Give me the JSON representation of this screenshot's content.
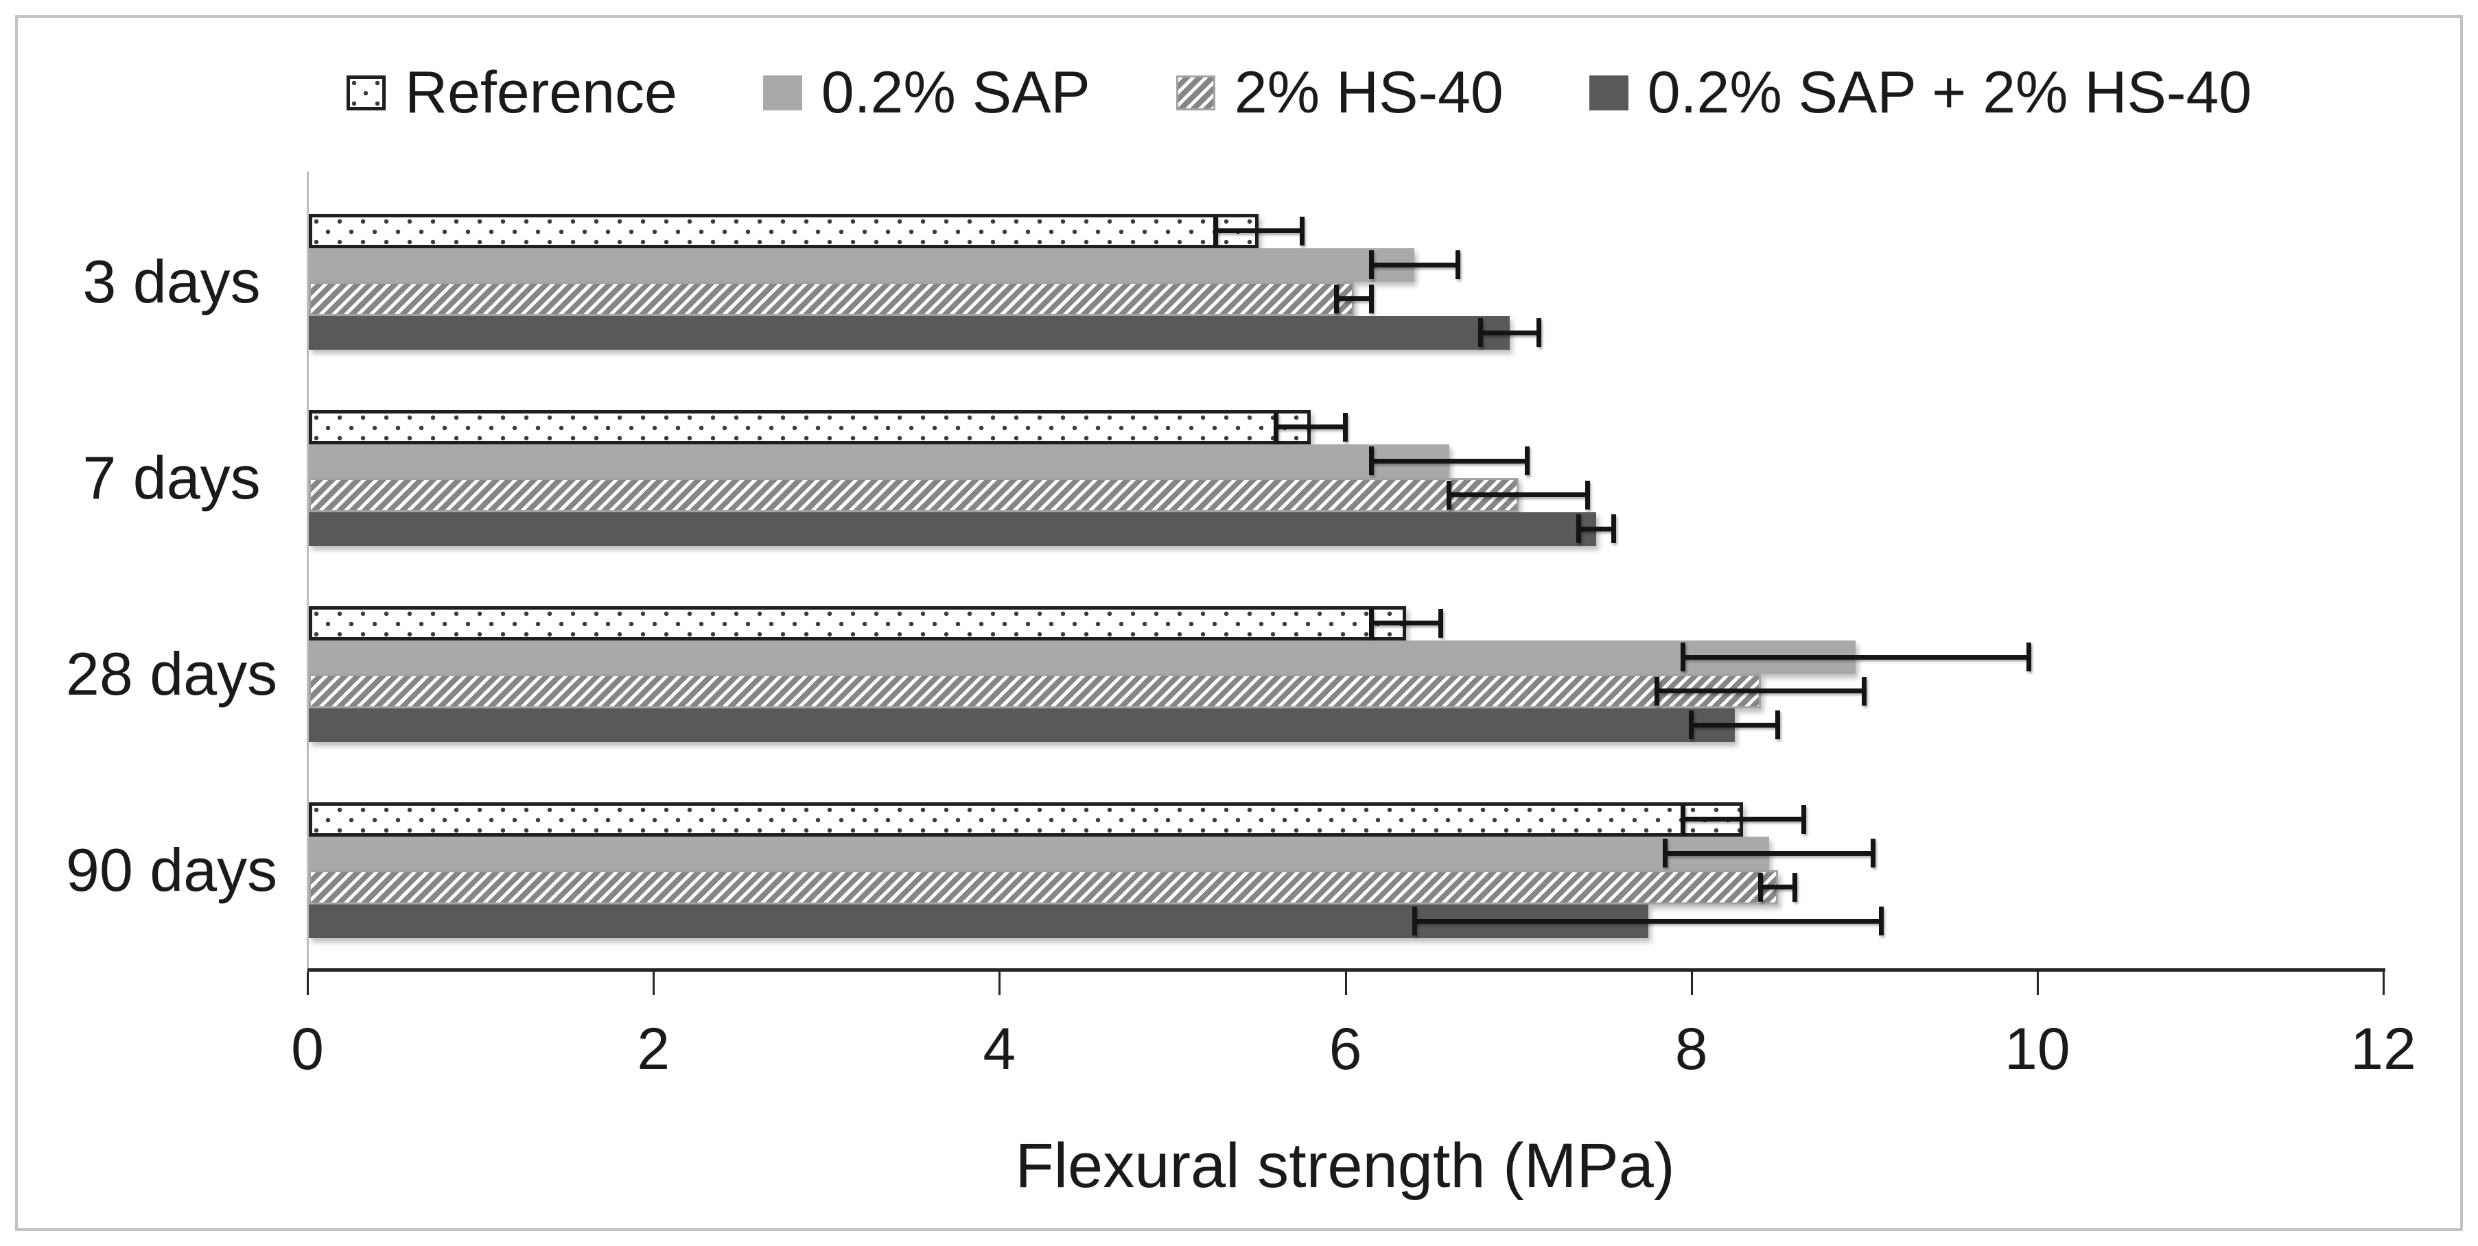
{
  "figure": {
    "background": "#ffffff",
    "border_color": "#c3c3c3"
  },
  "legend": {
    "position": "top",
    "items": [
      {
        "label": "Reference",
        "swatch": "dotted-pattern-swatch"
      },
      {
        "label": "0.2% SAP",
        "swatch": "light-gray-swatch"
      },
      {
        "label": "2% HS-40",
        "swatch": "diagonal-hatch-swatch"
      },
      {
        "label": "0.2% SAP + 2% HS-40",
        "swatch": "dark-gray-swatch"
      }
    ]
  },
  "chart_data": {
    "type": "bar",
    "orientation": "horizontal",
    "title": "",
    "xlabel": "Flexural strength (MPa)",
    "ylabel": "",
    "xlim": [
      0,
      12
    ],
    "x_ticks": [
      0,
      2,
      4,
      6,
      8,
      10,
      12
    ],
    "x_tick_labels": [
      "0",
      "2",
      "4",
      "6",
      "8",
      "10",
      "12"
    ],
    "grid": false,
    "error_bars": true,
    "legend_position": "top",
    "categories": [
      "3 days",
      "7 days",
      "28 days",
      "90 days"
    ],
    "series": [
      {
        "name": "Reference",
        "style": "dotted",
        "fill": "#ffffff",
        "pattern": "small-dots",
        "values": [
          5.5,
          5.8,
          6.35,
          8.3
        ],
        "errors": [
          0.25,
          0.2,
          0.2,
          0.35
        ]
      },
      {
        "name": "0.2% SAP",
        "style": "solid-light",
        "fill": "#a9a9a9",
        "pattern": "solid",
        "values": [
          6.4,
          6.6,
          8.95,
          8.45
        ],
        "errors": [
          0.25,
          0.45,
          1.0,
          0.6
        ]
      },
      {
        "name": "2% HS-40",
        "style": "hatched",
        "fill": "#868686",
        "pattern": "upward-diagonal-hatch",
        "values": [
          6.05,
          7.0,
          8.4,
          8.5
        ],
        "errors": [
          0.1,
          0.4,
          0.6,
          0.1
        ]
      },
      {
        "name": "0.2% SAP + 2% HS-40",
        "style": "solid-dark",
        "fill": "#595959",
        "pattern": "solid",
        "values": [
          6.95,
          7.45,
          8.25,
          7.75
        ],
        "errors": [
          0.17,
          0.1,
          0.25,
          1.35
        ]
      }
    ]
  }
}
